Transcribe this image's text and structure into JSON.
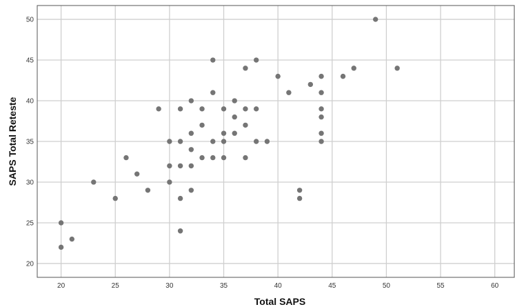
{
  "chart_data": {
    "type": "scatter",
    "title": "",
    "xlabel": "Total SAPS",
    "ylabel": "SAPS Total Reteste",
    "xlim": [
      17.8,
      61.8
    ],
    "ylim": [
      18.3,
      51.7
    ],
    "xticks": [
      "20",
      "25",
      "30",
      "35",
      "40",
      "45",
      "50",
      "55",
      "60"
    ],
    "yticks": [
      "20",
      "25",
      "30",
      "35",
      "40",
      "45",
      "50"
    ],
    "grid": true,
    "point_color": "#757575",
    "points": [
      {
        "x": 20,
        "y": 25
      },
      {
        "x": 20,
        "y": 22
      },
      {
        "x": 21,
        "y": 23
      },
      {
        "x": 23,
        "y": 30
      },
      {
        "x": 25,
        "y": 28
      },
      {
        "x": 26,
        "y": 33
      },
      {
        "x": 27,
        "y": 31
      },
      {
        "x": 28,
        "y": 29
      },
      {
        "x": 29,
        "y": 39
      },
      {
        "x": 30,
        "y": 35
      },
      {
        "x": 30,
        "y": 32
      },
      {
        "x": 30,
        "y": 30
      },
      {
        "x": 31,
        "y": 39
      },
      {
        "x": 31,
        "y": 35
      },
      {
        "x": 31,
        "y": 32
      },
      {
        "x": 31,
        "y": 28
      },
      {
        "x": 31,
        "y": 24
      },
      {
        "x": 32,
        "y": 40
      },
      {
        "x": 32,
        "y": 36
      },
      {
        "x": 32,
        "y": 34
      },
      {
        "x": 32,
        "y": 32
      },
      {
        "x": 32,
        "y": 29
      },
      {
        "x": 33,
        "y": 39
      },
      {
        "x": 33,
        "y": 37
      },
      {
        "x": 33,
        "y": 33
      },
      {
        "x": 34,
        "y": 45
      },
      {
        "x": 34,
        "y": 41
      },
      {
        "x": 34,
        "y": 35
      },
      {
        "x": 34,
        "y": 33
      },
      {
        "x": 35,
        "y": 39
      },
      {
        "x": 35,
        "y": 36
      },
      {
        "x": 35,
        "y": 35
      },
      {
        "x": 35,
        "y": 33
      },
      {
        "x": 36,
        "y": 40
      },
      {
        "x": 36,
        "y": 38
      },
      {
        "x": 36,
        "y": 36
      },
      {
        "x": 37,
        "y": 44
      },
      {
        "x": 37,
        "y": 39
      },
      {
        "x": 37,
        "y": 37
      },
      {
        "x": 37,
        "y": 33
      },
      {
        "x": 38,
        "y": 45
      },
      {
        "x": 38,
        "y": 39
      },
      {
        "x": 38,
        "y": 35
      },
      {
        "x": 39,
        "y": 35
      },
      {
        "x": 40,
        "y": 43
      },
      {
        "x": 41,
        "y": 41
      },
      {
        "x": 42,
        "y": 29
      },
      {
        "x": 42,
        "y": 28
      },
      {
        "x": 43,
        "y": 42
      },
      {
        "x": 44,
        "y": 43
      },
      {
        "x": 44,
        "y": 41
      },
      {
        "x": 44,
        "y": 39
      },
      {
        "x": 44,
        "y": 38
      },
      {
        "x": 44,
        "y": 36
      },
      {
        "x": 44,
        "y": 35
      },
      {
        "x": 46,
        "y": 43
      },
      {
        "x": 47,
        "y": 44
      },
      {
        "x": 49,
        "y": 50
      },
      {
        "x": 51,
        "y": 44
      }
    ]
  }
}
